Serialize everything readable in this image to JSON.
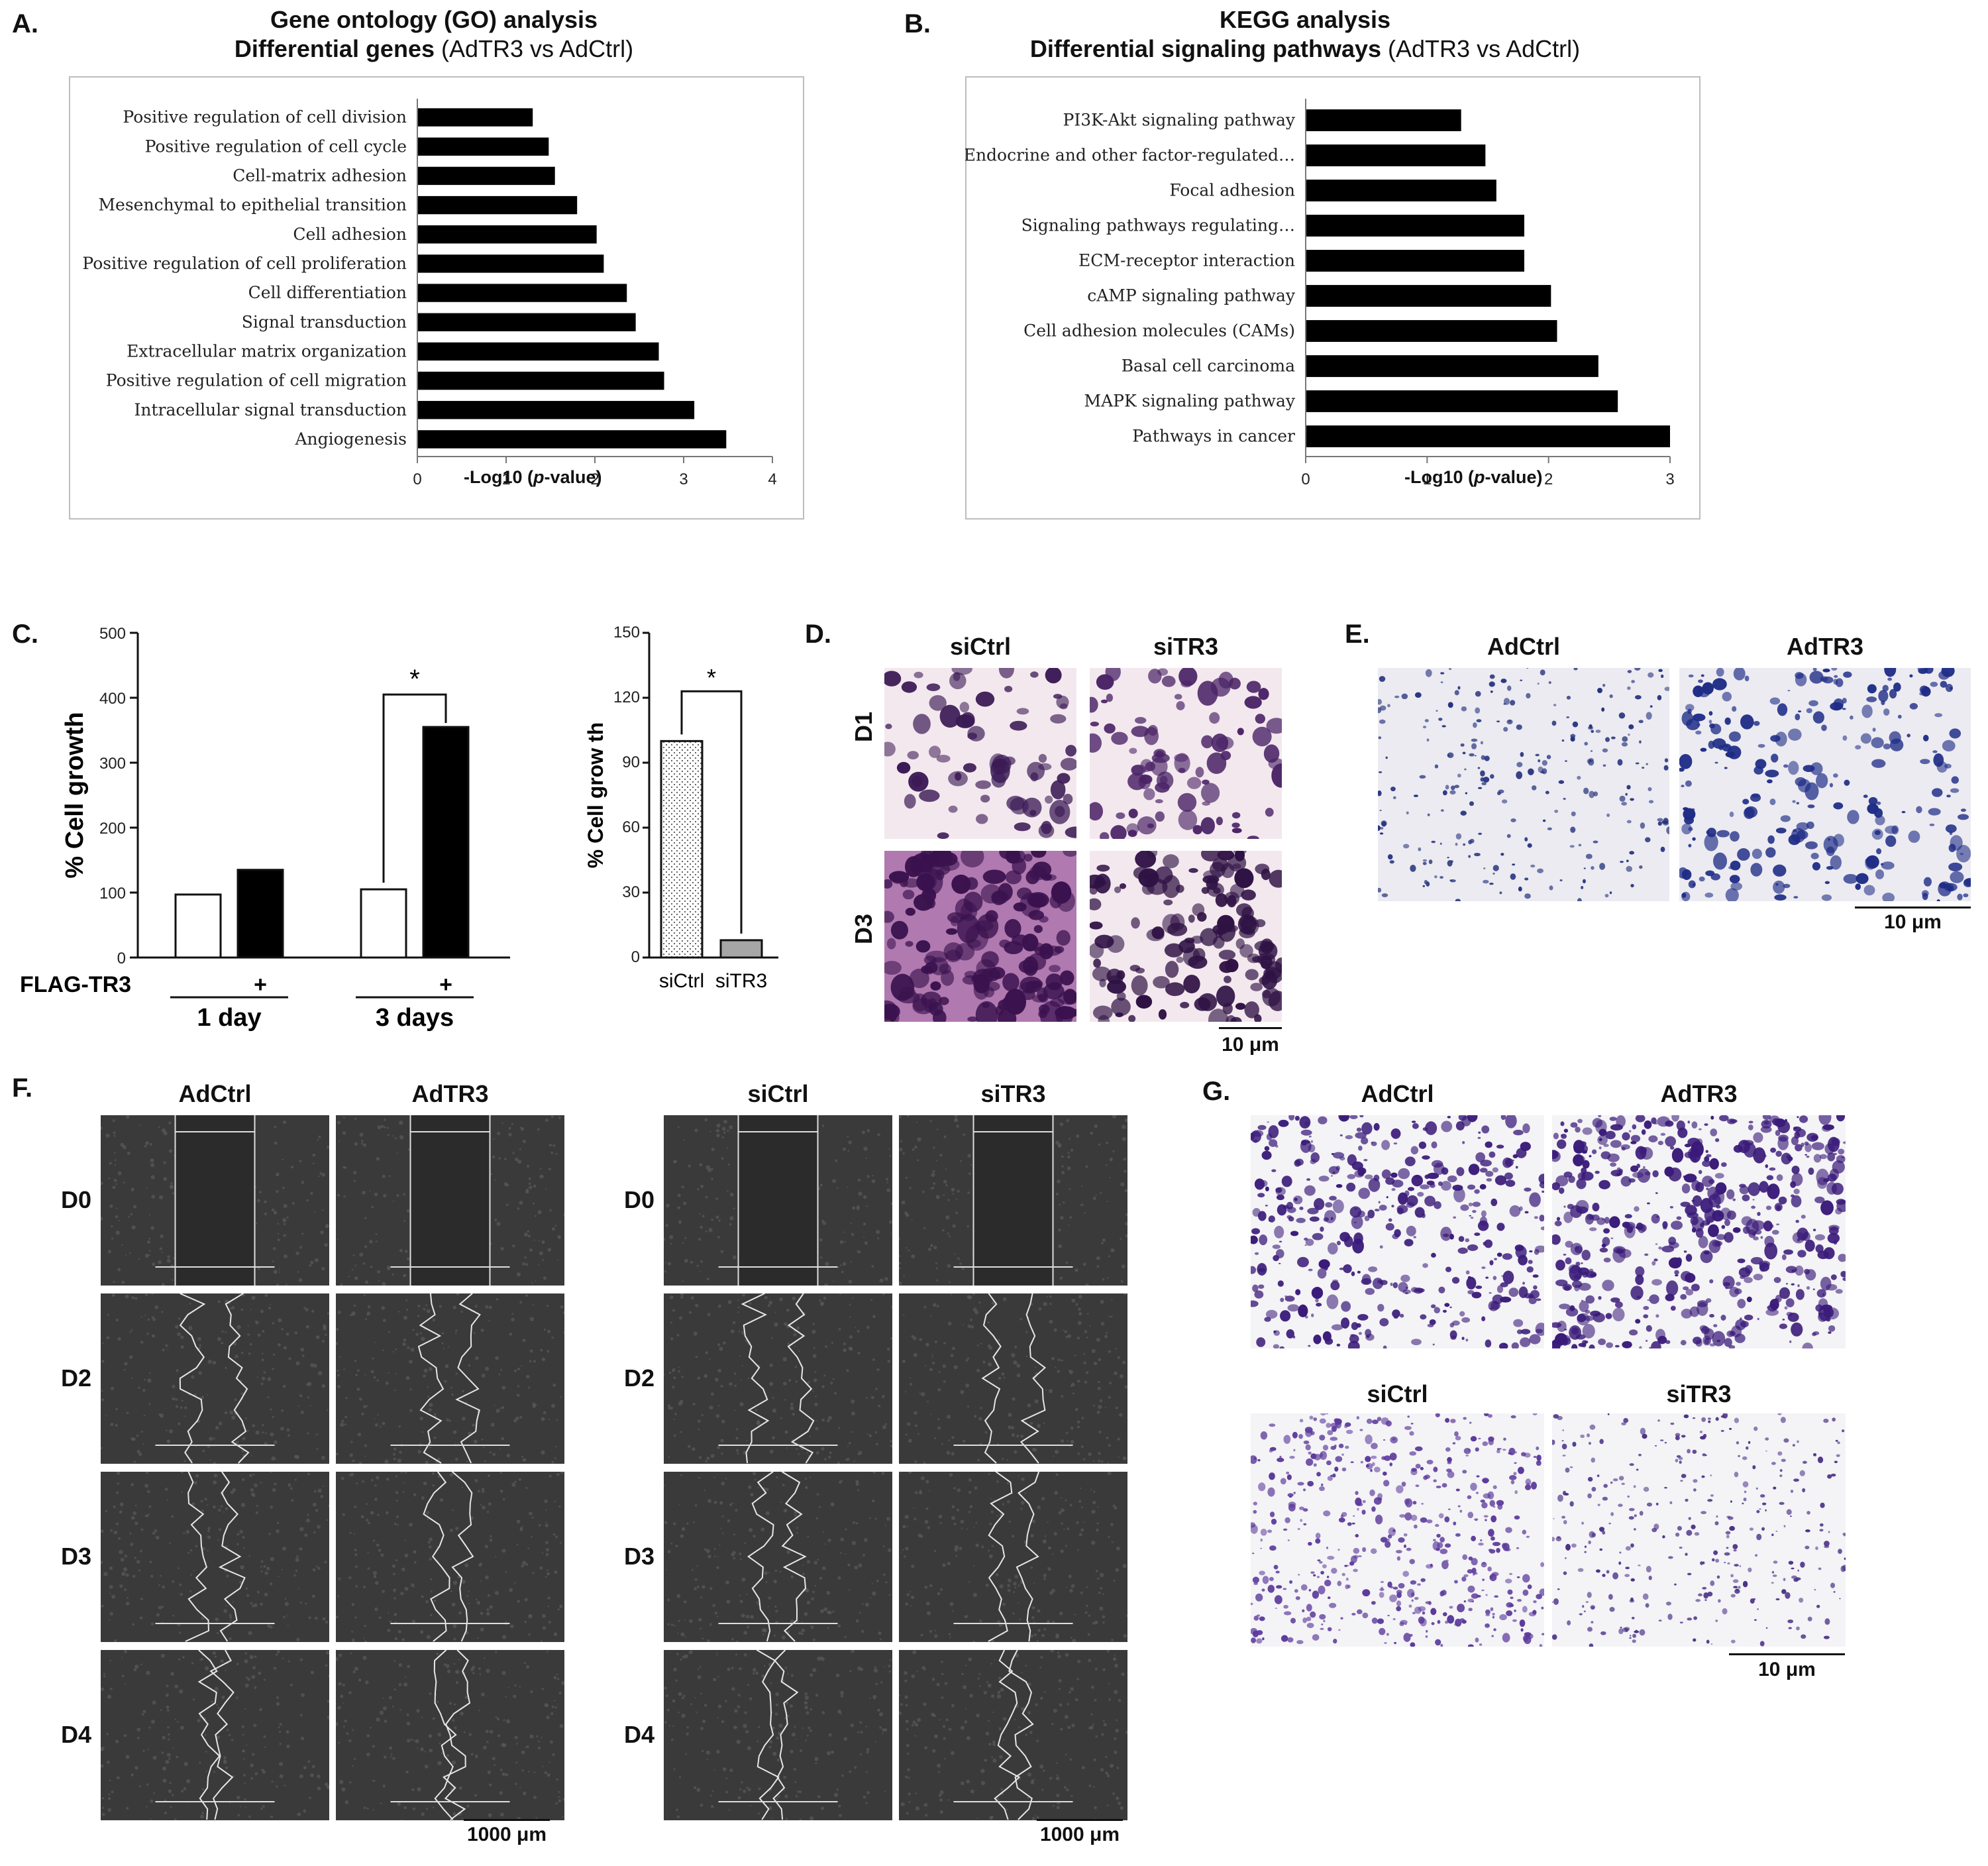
{
  "panelA": {
    "letter": "A.",
    "title_bold": "Gene ontology (GO) analysis",
    "subtitle_bold": "Differential genes",
    "subtitle_rest": "(AdTR3 vs AdCtrl)",
    "xlabel_pre": "-Log10 (",
    "xlabel_ital": "p",
    "xlabel_post": "-value)"
  },
  "panelB": {
    "letter": "B.",
    "title_bold": "KEGG analysis",
    "subtitle_bold": "Differential signaling pathways",
    "subtitle_rest": "(AdTR3 vs AdCtrl)",
    "xlabel_pre": "-Log10 (",
    "xlabel_ital": "p",
    "xlabel_post": "-value)"
  },
  "panelC": {
    "letter": "C.",
    "ylabel": "% Cell growth",
    "ylabel2": "% Cell grow th",
    "row_label": "FLAG-TR3",
    "plus": "+",
    "sig": "*",
    "group1": "1 day",
    "group2": "3 days",
    "bar2_label1": "siCtrl",
    "bar2_label2": "siTR3"
  },
  "panelD": {
    "letter": "D.",
    "col1": "siCtrl",
    "col2": "siTR3",
    "row1": "D1",
    "row2": "D3",
    "scale": "10 μm"
  },
  "panelE": {
    "letter": "E.",
    "col1": "AdCtrl",
    "col2": "AdTR3",
    "scale": "10 μm"
  },
  "panelF": {
    "letter": "F.",
    "left_col1": "AdCtrl",
    "left_col2": "AdTR3",
    "right_col1": "siCtrl",
    "right_col2": "siTR3",
    "rows": [
      "D0",
      "D2",
      "D3",
      "D4"
    ],
    "scale": "1000 μm"
  },
  "panelG": {
    "letter": "G.",
    "top_col1": "AdCtrl",
    "top_col2": "AdTR3",
    "bottom_col1": "siCtrl",
    "bottom_col2": "siTR3",
    "scale": "10 μm"
  },
  "chart_data": [
    {
      "type": "bar",
      "orientation": "horizontal",
      "categories": [
        "Positive regulation of cell division",
        "Positive regulation of cell cycle",
        "Cell-matrix adhesion",
        "Mesenchymal to epithelial transition",
        "Cell adhesion",
        "Positive regulation of cell proliferation",
        "Cell differentiation",
        "Signal transduction",
        "Extracellular matrix organization",
        "Positive regulation of cell migration",
        "Intracellular signal transduction",
        "Angiogenesis"
      ],
      "values": [
        1.3,
        1.48,
        1.55,
        1.8,
        2.02,
        2.1,
        2.36,
        2.46,
        2.72,
        2.78,
        3.12,
        3.48
      ],
      "ticks": [
        "0",
        "1",
        "2",
        "3",
        "4"
      ],
      "xlim": [
        0,
        4
      ],
      "color": "#000000"
    },
    {
      "type": "bar",
      "orientation": "horizontal",
      "categories": [
        "PI3K-Akt signaling pathway",
        "Endocrine and other factor-regulated…",
        "Focal adhesion",
        "Signaling pathways regulating…",
        "ECM-receptor interaction",
        "cAMP signaling pathway",
        "Cell adhesion molecules (CAMs)",
        "Basal cell carcinoma",
        "MAPK signaling pathway",
        "Pathways in cancer"
      ],
      "values": [
        1.28,
        1.48,
        1.57,
        1.8,
        1.8,
        2.02,
        2.07,
        2.41,
        2.57,
        3.0
      ],
      "ticks": [
        "0",
        "1",
        "2",
        "3"
      ],
      "xlim": [
        0,
        3
      ],
      "color": "#000000"
    },
    {
      "type": "bar",
      "categories": [
        "1 day",
        "3 days"
      ],
      "series": [
        {
          "values": [
            97,
            105
          ],
          "color": "#ffffff"
        },
        {
          "values": [
            135,
            355
          ],
          "color": "#000000"
        }
      ],
      "ticks": [
        "0",
        "100",
        "200",
        "300",
        "400",
        "500"
      ],
      "ylim": [
        0,
        500
      ]
    },
    {
      "type": "bar",
      "categories": [
        "siCtrl",
        "siTR3"
      ],
      "values": [
        100,
        8
      ],
      "ticks": [
        "0",
        "30",
        "60",
        "90",
        "120",
        "150"
      ],
      "ylim": [
        0,
        150
      ]
    }
  ]
}
